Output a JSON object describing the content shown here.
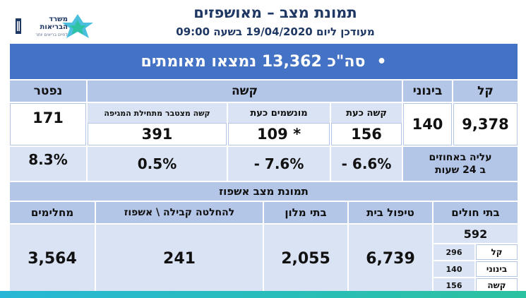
{
  "header": {
    "title": "תמונת מצב – מאושפזים",
    "subtitle": "מעודכן ליום 19/04/2020 בשעה 09:00",
    "logo_line1": "משרד",
    "logo_line2": "הבריאות",
    "logo_tagline": "לחיים בריאים יותר"
  },
  "summary": {
    "bullet": "•",
    "total_text": "סה\"כ 13,362 נמצאו מאומתים"
  },
  "status_table": {
    "headers": {
      "mild": "קל",
      "moderate": "בינוני",
      "severe": "קשה",
      "deceased": "נפטר"
    },
    "severe_sub": {
      "current_severe": "קשה כעת",
      "ventilated": "מונשמים כעת",
      "cumulative": "קשה מצטבר מתחילת המגיפה"
    },
    "values": {
      "mild": "9,378",
      "moderate": "140",
      "current_severe": "156",
      "ventilated": "* 109",
      "cumulative": "391",
      "deceased": "171"
    },
    "rise_label_line1": "עליה באחוזים",
    "rise_label_line2": "ב 24 שעות",
    "rise": {
      "current_severe": "6.6% -",
      "ventilated": "7.6% -",
      "cumulative": "0.5%",
      "deceased": "8.3%"
    }
  },
  "hospitalization": {
    "title": "תמונת מצב אשפוז",
    "headers": {
      "hospitals": "בתי חולים",
      "home_care": "טיפול בית",
      "hotels": "בתי מלון",
      "decision": "להחלטה קבילה \\ אשפוז",
      "recovered": "מחלימים"
    },
    "hospitals_total": "592",
    "hospitals_breakdown": [
      {
        "label": "קל",
        "value": "296"
      },
      {
        "label": "בינוני",
        "value": "140"
      },
      {
        "label": "קשה",
        "value": "156"
      }
    ],
    "values": {
      "home_care": "6,739",
      "hotels": "2,055",
      "decision": "241",
      "recovered": "3,564"
    }
  },
  "colors": {
    "header_blue": "#4472c4",
    "mid_blue": "#b4c6e7",
    "light_blue": "#dae3f3",
    "title_navy": "#1f3763"
  }
}
